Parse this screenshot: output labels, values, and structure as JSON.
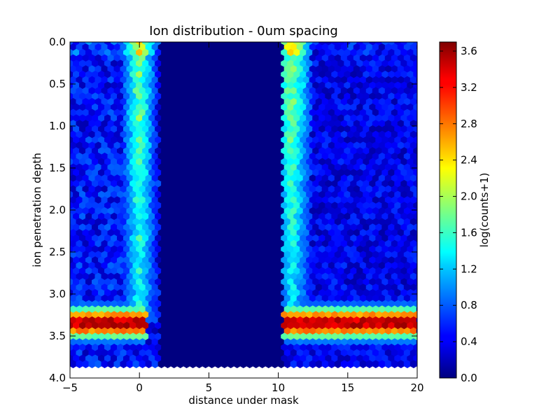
{
  "chart_data": {
    "type": "heatmap",
    "subtype": "hexbin",
    "title": "Ion distribution - 0um spacing",
    "xlabel": "distance under mask",
    "ylabel": "ion penetration depth",
    "xlim": [
      -5,
      20
    ],
    "ylim": [
      4.0,
      0.0
    ],
    "y_inverted": true,
    "xticks": [
      "−5",
      "0",
      "5",
      "10",
      "15",
      "20"
    ],
    "xtick_values": [
      -5,
      0,
      5,
      10,
      15,
      20
    ],
    "yticks": [
      "0.0",
      "0.5",
      "1.0",
      "1.5",
      "2.0",
      "2.5",
      "3.0",
      "3.5",
      "4.0"
    ],
    "ytick_values": [
      0.0,
      0.5,
      1.0,
      1.5,
      2.0,
      2.5,
      3.0,
      3.5,
      4.0
    ],
    "colormap": "jet",
    "colorbar": {
      "label": "log(counts+1)",
      "range": [
        0.0,
        3.7
      ],
      "ticks": [
        "0.0",
        "0.4",
        "0.8",
        "1.2",
        "1.6",
        "2.0",
        "2.4",
        "2.8",
        "3.2",
        "3.6"
      ],
      "tick_values": [
        0.0,
        0.4,
        0.8,
        1.2,
        1.6,
        2.0,
        2.4,
        2.8,
        3.2,
        3.6
      ]
    },
    "data_extent": {
      "x": [
        -5,
        20
      ],
      "y": [
        0.0,
        3.88
      ]
    },
    "mask_gap": {
      "x_start": 1.5,
      "x_end": 10.3,
      "value": 0.0
    },
    "regions": [
      {
        "name": "left open region",
        "x_start": -5,
        "x_end": 1.5,
        "background_value": 0.5
      },
      {
        "name": "right open region",
        "x_start": 10.3,
        "x_end": 20,
        "background_value": 0.4
      }
    ],
    "edge_streaks": [
      {
        "x_center": 0.0,
        "width": 1.0,
        "y_start": 0.0,
        "y_end": 3.2,
        "value_top": 1.9,
        "value_bottom": 1.4
      },
      {
        "x_center": 11.0,
        "width": 1.2,
        "y_start": 0.0,
        "y_end": 3.2,
        "value_top": 2.0,
        "value_bottom": 1.3
      }
    ],
    "peak_band": {
      "y_center": 3.35,
      "y_halfwidth": 0.2,
      "peak_value": 3.6,
      "x_ranges": [
        [
          -5,
          0.6
        ],
        [
          9.9,
          20
        ]
      ]
    }
  }
}
